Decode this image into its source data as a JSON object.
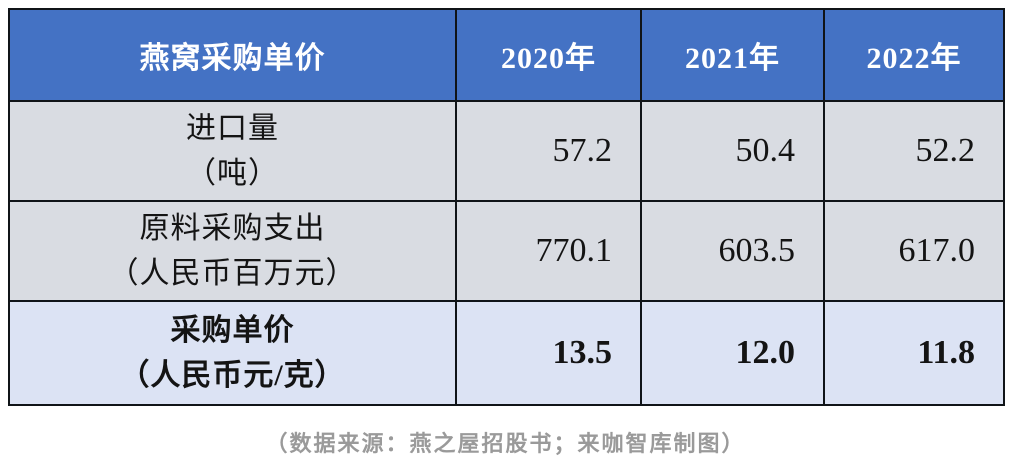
{
  "table": {
    "corner_label": "燕窝采购单价",
    "year_headers": [
      "2020年",
      "2021年",
      "2022年"
    ],
    "rows": [
      {
        "label": [
          "进口量",
          "（吨）"
        ],
        "values": [
          "57.2",
          "50.4",
          "52.2"
        ]
      },
      {
        "label": [
          "原料采购支出",
          "（人民币百万元）"
        ],
        "values": [
          "770.1",
          "603.5",
          "617.0"
        ]
      },
      {
        "label": [
          "采购单价",
          "（人民币元/克）"
        ],
        "values": [
          "13.5",
          "12.0",
          "11.8"
        ]
      }
    ]
  },
  "caption": "（数据来源：燕之屋招股书；来咖智库制图）",
  "colors": {
    "header_bg": "#4472C4",
    "header_text": "#FFFFFF",
    "row_bg_gray": "#D9DCE2",
    "row_bg_blue": "#DCE3F4",
    "border": "#101418",
    "caption_text": "#9A9A9A"
  },
  "chart_data": {
    "type": "table",
    "title": "燕窝采购单价",
    "columns": [
      "2020年",
      "2021年",
      "2022年"
    ],
    "rows": [
      {
        "metric": "进口量（吨）",
        "values": [
          57.2,
          50.4,
          52.2
        ]
      },
      {
        "metric": "原料采购支出（人民币百万元）",
        "values": [
          770.1,
          603.5,
          617.0
        ]
      },
      {
        "metric": "采购单价（人民币元/克）",
        "values": [
          13.5,
          12.0,
          11.8
        ]
      }
    ],
    "source_note": "（数据来源：燕之屋招股书；来咖智库制图）"
  }
}
